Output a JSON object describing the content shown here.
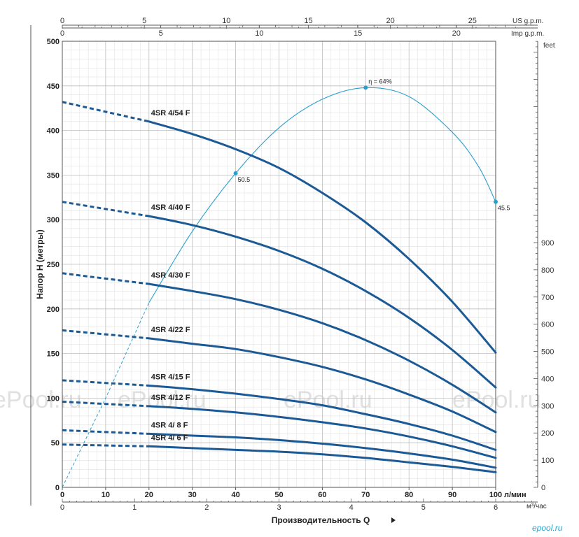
{
  "chart_data": {
    "type": "line",
    "xlabel": "Производительность Q",
    "ylabel": "Напор H  (метры)",
    "xlim": [
      0,
      100
    ],
    "ylim": [
      0,
      500
    ],
    "x_ticks": [
      0,
      10,
      20,
      30,
      40,
      50,
      60,
      70,
      80,
      90,
      100
    ],
    "y_ticks": [
      0,
      50,
      100,
      150,
      200,
      250,
      300,
      350,
      400,
      450,
      500
    ],
    "x_unit": "л/мин",
    "grid": true,
    "secondary_axes": {
      "top_us": {
        "label": "US g.p.m.",
        "factor": 0.264172,
        "ticks": [
          0,
          5,
          10,
          15,
          20,
          25
        ],
        "labels": [
          "0",
          "5",
          "10",
          "15",
          "20",
          "25"
        ]
      },
      "top_imp": {
        "label": "Imp g.p.m.",
        "factor": 0.219969,
        "ticks": [
          0,
          5,
          10,
          15,
          20
        ],
        "labels": [
          "0",
          "5",
          "10",
          "15",
          "20"
        ]
      },
      "bottom_m3h": {
        "label": "м³/час",
        "factor": 0.06,
        "ticks": [
          0,
          1,
          2,
          3,
          4,
          5,
          6
        ],
        "labels": [
          "0",
          "1",
          "2",
          "3",
          "4",
          "5",
          "6"
        ]
      },
      "right_feet": {
        "label": "feet",
        "factor": 3.28084,
        "ticks": [
          0,
          100,
          200,
          300,
          400,
          500,
          600,
          700,
          800,
          900
        ],
        "labels": [
          "0",
          "100",
          "200",
          "300",
          "400",
          "500",
          "600",
          "700",
          "800",
          "900"
        ]
      }
    },
    "series": [
      {
        "name": "4SR 4/54 F",
        "x": [
          0,
          20,
          30,
          40,
          50,
          60,
          70,
          80,
          90,
          100
        ],
        "y": [
          432,
          410,
          396,
          379,
          358,
          330,
          297,
          256,
          208,
          151
        ]
      },
      {
        "name": "4SR 4/40 F",
        "x": [
          0,
          20,
          30,
          40,
          50,
          60,
          70,
          80,
          90,
          100
        ],
        "y": [
          320,
          304,
          294,
          281,
          265,
          245,
          220,
          190,
          154,
          112
        ]
      },
      {
        "name": "4SR 4/30 F",
        "x": [
          0,
          20,
          30,
          40,
          50,
          60,
          70,
          80,
          90,
          100
        ],
        "y": [
          240,
          228,
          220,
          211,
          199,
          184,
          165,
          142,
          115,
          84
        ]
      },
      {
        "name": "4SR 4/22 F",
        "x": [
          0,
          20,
          30,
          40,
          50,
          60,
          70,
          80,
          90,
          100
        ],
        "y": [
          176,
          167,
          161,
          155,
          146,
          135,
          121,
          104,
          85,
          62
        ]
      },
      {
        "name": "4SR 4/15 F",
        "x": [
          0,
          20,
          30,
          40,
          50,
          60,
          70,
          80,
          90,
          100
        ],
        "y": [
          120,
          114,
          110,
          105,
          99,
          92,
          82,
          71,
          58,
          42
        ]
      },
      {
        "name": "4SR 4/12 F",
        "x": [
          0,
          20,
          30,
          40,
          50,
          60,
          70,
          80,
          90,
          100
        ],
        "y": [
          96,
          91,
          88,
          84,
          79,
          73,
          66,
          57,
          46,
          33
        ]
      },
      {
        "name": "4SR 4/ 8 F",
        "x": [
          0,
          20,
          30,
          40,
          50,
          60,
          70,
          80,
          90,
          100
        ],
        "y": [
          64,
          60,
          58,
          56,
          53,
          49,
          44,
          38,
          31,
          22
        ]
      },
      {
        "name": "4SR 4/ 6 F",
        "x": [
          0,
          20,
          30,
          40,
          50,
          60,
          70,
          80,
          90,
          100
        ],
        "y": [
          48,
          46,
          44,
          42,
          40,
          37,
          33,
          28,
          23,
          17
        ]
      }
    ],
    "efficiency_curve": {
      "x": [
        0,
        10,
        20,
        30,
        40,
        50,
        60,
        70,
        80,
        90,
        96,
        100
      ],
      "y": [
        0,
        100,
        207,
        287,
        352,
        403,
        435,
        448,
        438,
        398,
        360,
        320
      ],
      "points": [
        {
          "x": 40,
          "y": 352,
          "label": "50.5"
        },
        {
          "x": 70,
          "y": 448,
          "label": "η = 64%"
        },
        {
          "x": 100,
          "y": 320,
          "label": "45.5"
        }
      ]
    },
    "colors": {
      "curve": "#1c5a96",
      "efficiency": "#2a9fcf",
      "grid_major": "#bdbdbd",
      "grid_minor": "#e2e2e2"
    }
  },
  "watermark": "ePool.ru",
  "brand": "epool.ru"
}
